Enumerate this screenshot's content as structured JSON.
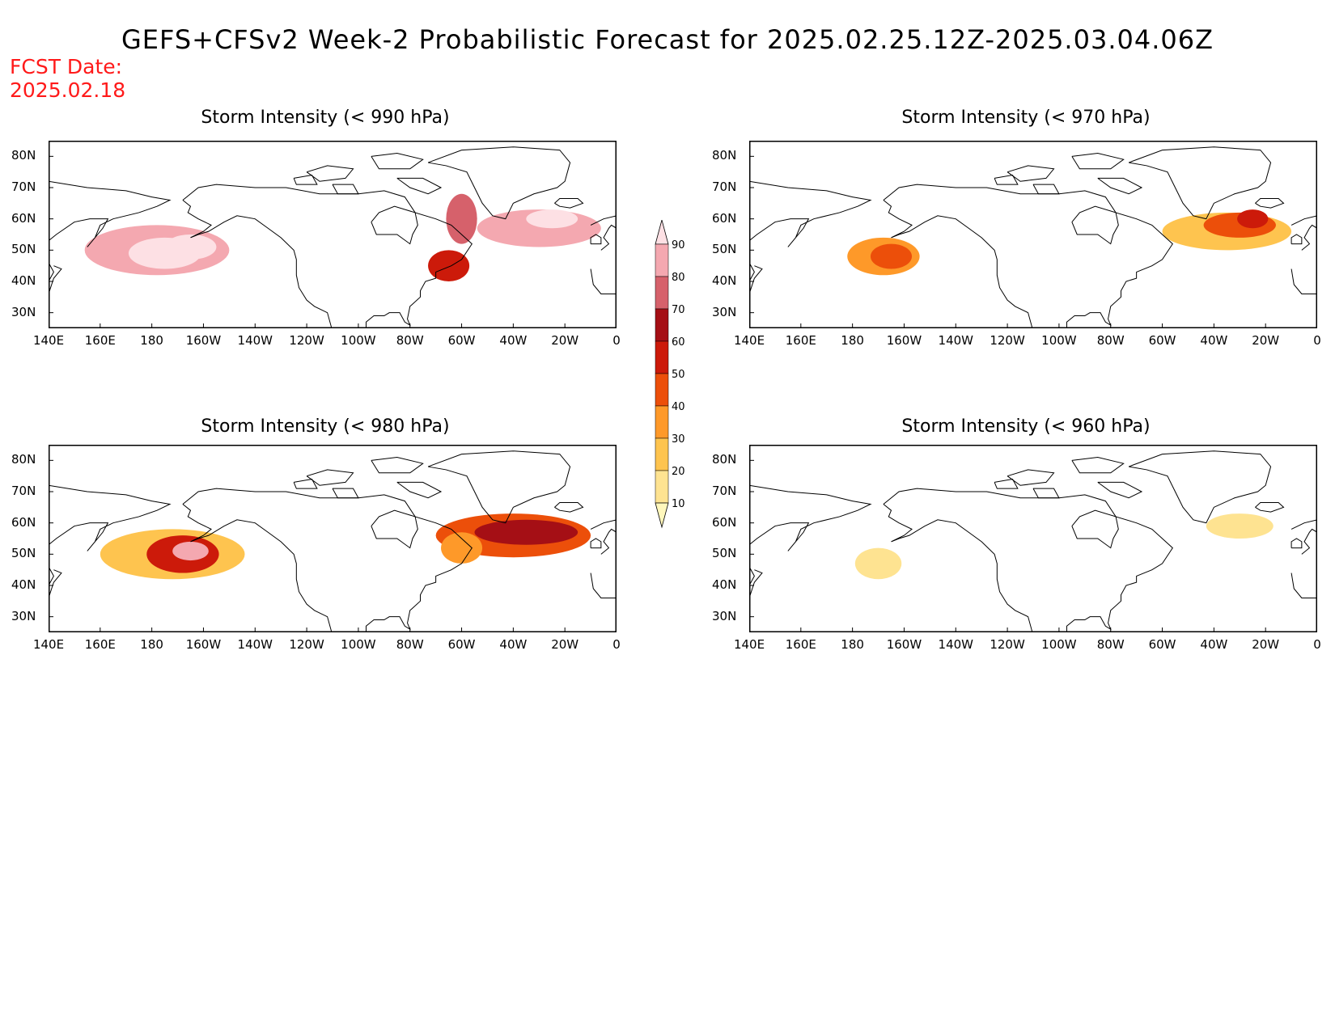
{
  "header": {
    "title": "GEFS+CFSv2 Week-2 Probabilistic Forecast for 2025.02.25.12Z-2025.03.04.06Z",
    "fcst_label": "FCST Date:",
    "fcst_date": "2025.02.18"
  },
  "colorbar": {
    "levels": [
      "10",
      "20",
      "30",
      "40",
      "50",
      "60",
      "70",
      "80",
      "90"
    ],
    "colors": [
      "#fff7bc",
      "#fee391",
      "#fec44f",
      "#fe9929",
      "#ec4f0a",
      "#cc1a0a",
      "#a50f15",
      "#d6616b",
      "#f4a8b0",
      "#fde0e4"
    ]
  },
  "axes": {
    "lat_labels": [
      "80N",
      "70N",
      "60N",
      "50N",
      "40N",
      "30N"
    ],
    "lon_labels": [
      "140E",
      "160E",
      "180",
      "160W",
      "140W",
      "120W",
      "100W",
      "80W",
      "60W",
      "40W",
      "20W",
      "0"
    ]
  },
  "panels": [
    {
      "title": "Storm Intensity (< 990 hPa)",
      "blobs": [
        {
          "lon": -178,
          "lat": 50,
          "rl": 28,
          "rt": 8,
          "level": 8
        },
        {
          "lon": -175,
          "lat": 49,
          "rl": 14,
          "rt": 5,
          "level": 9
        },
        {
          "lon": -165,
          "lat": 51,
          "rl": 10,
          "rt": 4,
          "level": 9
        },
        {
          "lon": -30,
          "lat": 57,
          "rl": 24,
          "rt": 6,
          "level": 8
        },
        {
          "lon": -60,
          "lat": 60,
          "rl": 6,
          "rt": 8,
          "level": 7
        },
        {
          "lon": -25,
          "lat": 60,
          "rl": 10,
          "rt": 3,
          "level": 9
        },
        {
          "lon": -65,
          "lat": 45,
          "rl": 8,
          "rt": 5,
          "level": 5
        }
      ]
    },
    {
      "title": "Storm Intensity (< 970 hPa)",
      "blobs": [
        {
          "lon": -168,
          "lat": 48,
          "rl": 14,
          "rt": 6,
          "level": 3
        },
        {
          "lon": -165,
          "lat": 48,
          "rl": 8,
          "rt": 4,
          "level": 4
        },
        {
          "lon": -35,
          "lat": 56,
          "rl": 25,
          "rt": 6,
          "level": 2
        },
        {
          "lon": -30,
          "lat": 58,
          "rl": 14,
          "rt": 4,
          "level": 4
        },
        {
          "lon": -25,
          "lat": 60,
          "rl": 6,
          "rt": 3,
          "level": 5
        }
      ]
    },
    {
      "title": "Storm Intensity (< 980 hPa)",
      "blobs": [
        {
          "lon": -172,
          "lat": 50,
          "rl": 28,
          "rt": 8,
          "level": 2
        },
        {
          "lon": -168,
          "lat": 50,
          "rl": 14,
          "rt": 6,
          "level": 5
        },
        {
          "lon": -165,
          "lat": 51,
          "rl": 7,
          "rt": 3,
          "level": 8
        },
        {
          "lon": -40,
          "lat": 56,
          "rl": 30,
          "rt": 7,
          "level": 4
        },
        {
          "lon": -35,
          "lat": 57,
          "rl": 20,
          "rt": 4,
          "level": 6
        },
        {
          "lon": -60,
          "lat": 52,
          "rl": 8,
          "rt": 5,
          "level": 3
        }
      ]
    },
    {
      "title": "Storm Intensity (< 960 hPa)",
      "blobs": [
        {
          "lon": -170,
          "lat": 47,
          "rl": 9,
          "rt": 5,
          "level": 1
        },
        {
          "lon": -30,
          "lat": 59,
          "rl": 13,
          "rt": 4,
          "level": 1
        }
      ]
    }
  ]
}
